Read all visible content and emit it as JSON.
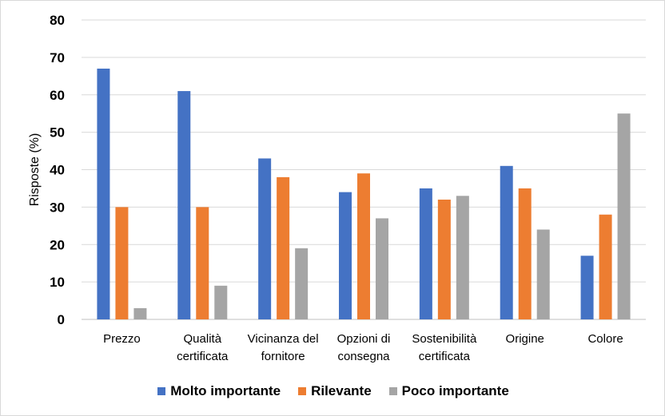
{
  "chart_data": {
    "type": "bar",
    "categories": [
      [
        "Prezzo"
      ],
      [
        "Qualità",
        "certificata"
      ],
      [
        "Vicinanza del",
        "fornitore"
      ],
      [
        "Opzioni di",
        "consegna"
      ],
      [
        "Sostenibilità",
        "certificata"
      ],
      [
        "Origine"
      ],
      [
        "Colore"
      ]
    ],
    "series": [
      {
        "name": "Molto importante",
        "color": "#4472c4",
        "values": [
          67,
          61,
          43,
          34,
          35,
          41,
          17
        ]
      },
      {
        "name": "Rilevante",
        "color": "#ed7d31",
        "values": [
          30,
          30,
          38,
          39,
          32,
          35,
          28
        ]
      },
      {
        "name": "Poco importante",
        "color": "#a5a5a5",
        "values": [
          3,
          9,
          19,
          27,
          33,
          24,
          55
        ]
      }
    ],
    "ylabel": "Risposte (%)",
    "ylim": [
      0,
      80
    ],
    "yticks": [
      0,
      10,
      20,
      30,
      40,
      50,
      60,
      70,
      80
    ],
    "grid": true,
    "legend_position": "bottom"
  }
}
